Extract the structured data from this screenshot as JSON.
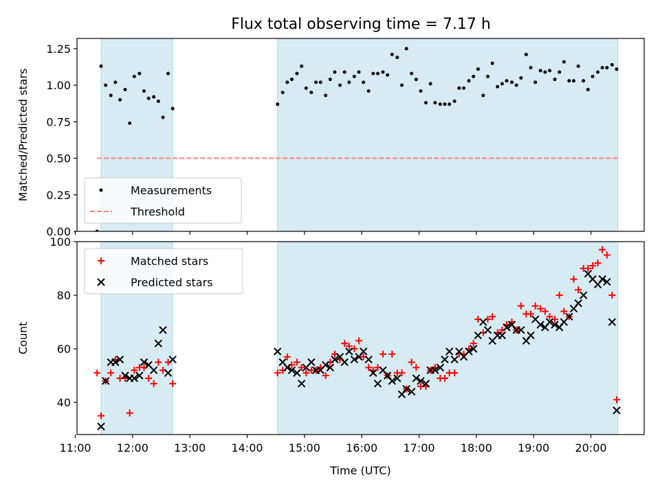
{
  "figure_title": "Flux total observing time = 7.17 h",
  "colors": {
    "shade": "#add8e6",
    "measurement": "#000000",
    "threshold": "#ff8080",
    "matched": "#ff0000",
    "predicted": "#000000"
  },
  "chart_data": [
    {
      "type": "scatter",
      "panel": "top",
      "title": "Flux total observing time = 7.17 h",
      "xlabel": "",
      "ylabel": "Matched/Predicted stars",
      "xlim": [
        11.03,
        20.93
      ],
      "ylim": [
        0,
        1.32
      ],
      "y_ticks": [
        0.0,
        0.25,
        0.5,
        0.75,
        1.0,
        1.25
      ],
      "y_tick_labels": [
        "0.00",
        "0.25",
        "0.50",
        "0.75",
        "1.00",
        "1.25"
      ],
      "shaded_intervals": [
        [
          11.45,
          12.7
        ],
        [
          14.53,
          20.47
        ]
      ],
      "legend": {
        "placement": "lower-left",
        "entries": [
          "Measurements",
          "Threshold"
        ]
      },
      "threshold": {
        "name": "Threshold",
        "value": 0.5,
        "x_range": [
          11.38,
          20.47
        ]
      },
      "series": [
        {
          "name": "Measurements",
          "x": [
            11.38,
            11.45,
            11.53,
            11.62,
            11.7,
            11.78,
            11.87,
            11.95,
            12.03,
            12.12,
            12.2,
            12.28,
            12.37,
            12.45,
            12.53,
            12.62,
            12.7,
            14.53,
            14.62,
            14.7,
            14.78,
            14.87,
            14.95,
            15.03,
            15.12,
            15.2,
            15.28,
            15.37,
            15.45,
            15.53,
            15.62,
            15.7,
            15.78,
            15.87,
            15.95,
            16.03,
            16.12,
            16.2,
            16.28,
            16.37,
            16.45,
            16.53,
            16.62,
            16.7,
            16.78,
            16.87,
            16.95,
            17.03,
            17.12,
            17.2,
            17.28,
            17.37,
            17.45,
            17.53,
            17.62,
            17.7,
            17.78,
            17.87,
            17.95,
            18.03,
            18.12,
            18.2,
            18.28,
            18.37,
            18.45,
            18.53,
            18.62,
            18.7,
            18.78,
            18.87,
            18.95,
            19.03,
            19.12,
            19.2,
            19.28,
            19.37,
            19.45,
            19.53,
            19.62,
            19.7,
            19.78,
            19.87,
            19.95,
            20.03,
            20.12,
            20.2,
            20.28,
            20.37,
            20.45
          ],
          "values": [
            0.0,
            1.13,
            1.0,
            0.93,
            1.02,
            0.9,
            0.97,
            0.74,
            1.06,
            1.08,
            0.96,
            0.91,
            0.92,
            0.89,
            0.78,
            1.08,
            0.84,
            0.87,
            0.95,
            1.02,
            1.04,
            1.08,
            1.13,
            0.98,
            0.95,
            1.02,
            1.02,
            0.93,
            1.04,
            1.09,
            1.0,
            1.09,
            1.02,
            1.06,
            1.09,
            1.02,
            0.96,
            1.08,
            1.08,
            1.09,
            1.07,
            1.21,
            1.19,
            1.0,
            1.25,
            1.08,
            1.04,
            0.96,
            0.88,
            1.01,
            0.88,
            0.87,
            0.87,
            0.87,
            0.89,
            0.98,
            0.98,
            1.03,
            1.06,
            1.11,
            0.93,
            1.06,
            1.15,
            0.99,
            1.01,
            1.03,
            1.02,
            1.0,
            1.05,
            1.21,
            1.12,
            1.02,
            1.1,
            1.09,
            1.1,
            1.04,
            1.09,
            1.16,
            1.03,
            1.03,
            1.13,
            1.03,
            0.97,
            1.06,
            1.09,
            1.12,
            1.12,
            1.14,
            1.11
          ]
        }
      ]
    },
    {
      "type": "scatter",
      "panel": "bottom",
      "xlabel": "Time (UTC)",
      "ylabel": "Count",
      "xlim": [
        11.03,
        20.93
      ],
      "ylim": [
        28,
        100
      ],
      "x_ticks": [
        11,
        12,
        13,
        14,
        15,
        16,
        17,
        18,
        19,
        20
      ],
      "x_tick_labels": [
        "11:00",
        "12:00",
        "13:00",
        "14:00",
        "15:00",
        "16:00",
        "17:00",
        "18:00",
        "19:00",
        "20:00"
      ],
      "y_ticks": [
        40,
        60,
        80,
        100
      ],
      "y_tick_labels": [
        "40",
        "60",
        "80",
        "100"
      ],
      "shaded_intervals": [
        [
          11.45,
          12.7
        ],
        [
          14.53,
          20.47
        ]
      ],
      "legend": {
        "placement": "upper-left",
        "entries": [
          "Matched stars",
          "Predicted stars"
        ]
      },
      "series": [
        {
          "name": "Matched stars",
          "marker": "plus",
          "x": [
            11.38,
            11.45,
            11.53,
            11.62,
            11.7,
            11.78,
            11.87,
            11.95,
            12.03,
            12.12,
            12.2,
            12.28,
            12.37,
            12.45,
            12.53,
            12.62,
            12.7,
            14.53,
            14.62,
            14.7,
            14.78,
            14.87,
            14.95,
            15.03,
            15.12,
            15.2,
            15.28,
            15.37,
            15.45,
            15.53,
            15.62,
            15.7,
            15.78,
            15.87,
            15.95,
            16.03,
            16.12,
            16.2,
            16.28,
            16.37,
            16.45,
            16.53,
            16.62,
            16.7,
            16.78,
            16.87,
            16.95,
            17.03,
            17.12,
            17.2,
            17.28,
            17.37,
            17.45,
            17.53,
            17.62,
            17.7,
            17.78,
            17.87,
            17.95,
            18.03,
            18.12,
            18.2,
            18.28,
            18.37,
            18.45,
            18.53,
            18.62,
            18.7,
            18.78,
            18.87,
            18.95,
            19.03,
            19.12,
            19.2,
            19.28,
            19.37,
            19.45,
            19.53,
            19.62,
            19.7,
            19.78,
            19.87,
            19.95,
            20.03,
            20.12,
            20.2,
            20.28,
            20.37,
            20.45
          ],
          "values": [
            51,
            35,
            48,
            51,
            56,
            49,
            49,
            36,
            52,
            53,
            53,
            49,
            47,
            55,
            52,
            55,
            47,
            51,
            52,
            57,
            54,
            55,
            53,
            51,
            52,
            52,
            53,
            50,
            55,
            58,
            56,
            62,
            61,
            60,
            63,
            57,
            53,
            52,
            53,
            58,
            50,
            58,
            51,
            51,
            45,
            55,
            53,
            46,
            46,
            52,
            53,
            49,
            49,
            51,
            51,
            58,
            58,
            60,
            62,
            71,
            66,
            71,
            72,
            66,
            67,
            69,
            70,
            67,
            76,
            73,
            73,
            76,
            75,
            74,
            72,
            71,
            80,
            74,
            72,
            86,
            82,
            90,
            90,
            91,
            92,
            97,
            95,
            80,
            41
          ]
        },
        {
          "name": "Predicted stars",
          "marker": "x",
          "x": [
            11.45,
            11.53,
            11.62,
            11.7,
            11.78,
            11.87,
            11.95,
            12.03,
            12.12,
            12.2,
            12.28,
            12.37,
            12.45,
            12.53,
            12.62,
            12.7,
            14.53,
            14.62,
            14.7,
            14.78,
            14.87,
            14.95,
            15.03,
            15.12,
            15.2,
            15.28,
            15.37,
            15.45,
            15.53,
            15.62,
            15.7,
            15.78,
            15.87,
            15.95,
            16.03,
            16.12,
            16.2,
            16.28,
            16.37,
            16.45,
            16.53,
            16.62,
            16.7,
            16.78,
            16.87,
            16.95,
            17.03,
            17.12,
            17.2,
            17.28,
            17.37,
            17.45,
            17.53,
            17.62,
            17.7,
            17.78,
            17.87,
            17.95,
            18.03,
            18.12,
            18.2,
            18.28,
            18.37,
            18.45,
            18.53,
            18.62,
            18.7,
            18.78,
            18.87,
            18.95,
            19.03,
            19.12,
            19.2,
            19.28,
            19.37,
            19.45,
            19.53,
            19.62,
            19.7,
            19.78,
            19.87,
            19.95,
            20.03,
            20.12,
            20.2,
            20.28,
            20.37,
            20.45
          ],
          "values": [
            31,
            48,
            55,
            55,
            56,
            50,
            49,
            49,
            50,
            55,
            54,
            52,
            62,
            67,
            51,
            56,
            59,
            55,
            53,
            52,
            51,
            47,
            53,
            55,
            52,
            52,
            54,
            53,
            56,
            57,
            55,
            59,
            56,
            57,
            59,
            56,
            51,
            47,
            52,
            50,
            48,
            49,
            43,
            45,
            44,
            49,
            48,
            47,
            52,
            52,
            53,
            56,
            59,
            56,
            59,
            57,
            59,
            60,
            65,
            70,
            67,
            63,
            65,
            65,
            68,
            69,
            67,
            67,
            63,
            65,
            71,
            69,
            68,
            70,
            69,
            68,
            70,
            72,
            75,
            77,
            80,
            88,
            86,
            84,
            86,
            85,
            70,
            37
          ]
        }
      ]
    }
  ]
}
